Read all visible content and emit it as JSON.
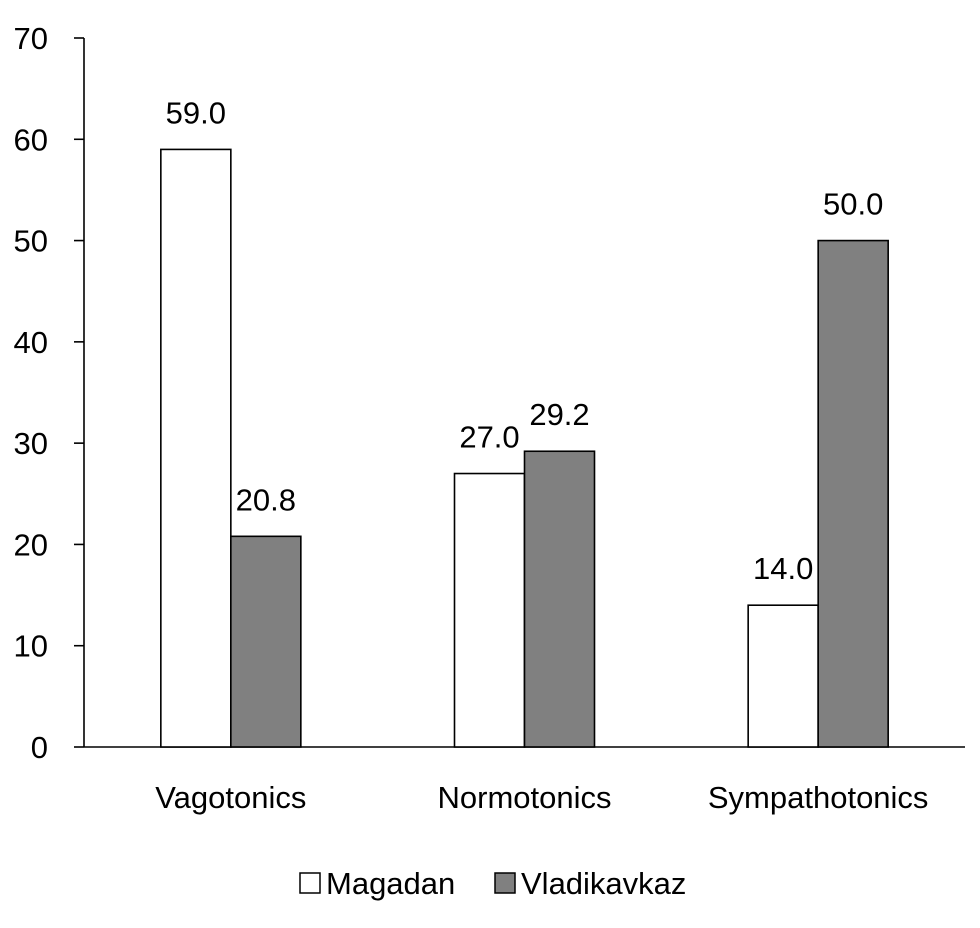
{
  "chart_data": {
    "type": "bar",
    "categories": [
      "Vagotonics",
      "Normotonics",
      "Sympathotonics"
    ],
    "series": [
      {
        "name": "Magadan",
        "values": [
          59.0,
          27.0,
          14.0
        ],
        "data_labels": [
          "59.0",
          "27.0",
          "14.0"
        ],
        "color": "#ffffff"
      },
      {
        "name": "Vladikavkaz",
        "values": [
          20.8,
          29.2,
          50.0
        ],
        "data_labels": [
          "20.8",
          "29.2",
          "50.0"
        ],
        "color": "#808080"
      }
    ],
    "ylim": [
      0,
      70
    ],
    "yticks": [
      0,
      10,
      20,
      30,
      40,
      50,
      60,
      70
    ],
    "title": "",
    "xlabel": "",
    "ylabel": "",
    "grid": false,
    "legend_position": "bottom"
  }
}
